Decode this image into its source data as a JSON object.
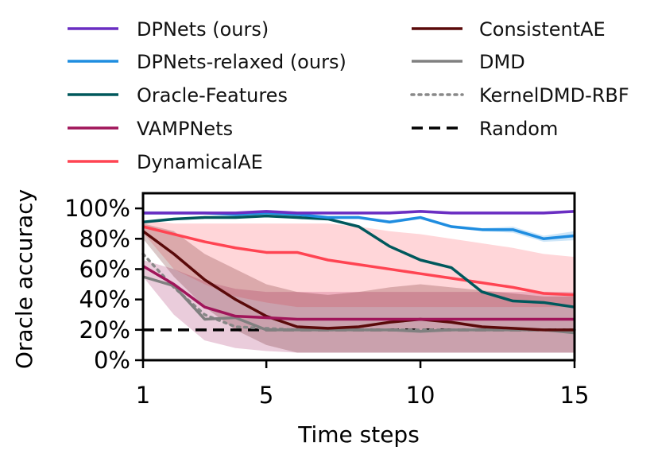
{
  "chart_data": {
    "type": "line",
    "title": "",
    "xlabel": "Time steps",
    "ylabel": "Oracle accuracy",
    "xlim": [
      1,
      15
    ],
    "ylim": [
      0,
      110
    ],
    "xticks": [
      1,
      5,
      10,
      15
    ],
    "xtick_labels": [
      "1",
      "5",
      "10",
      "15"
    ],
    "yticks": [
      0,
      20,
      40,
      60,
      80,
      100
    ],
    "ytick_labels": [
      "0%",
      "20%",
      "40%",
      "60%",
      "80%",
      "100%"
    ],
    "grid": false,
    "legend_placement": "top, two columns, outside plot",
    "x": [
      1,
      2,
      3,
      4,
      5,
      6,
      7,
      8,
      9,
      10,
      11,
      12,
      13,
      14,
      15
    ],
    "series": [
      {
        "name": "DPNets (ours)",
        "color": "#6a2ec2",
        "style": "solid",
        "values": [
          97,
          97,
          97,
          97,
          98,
          97,
          97,
          97,
          97,
          98,
          97,
          97,
          97,
          97,
          98
        ],
        "band_low": [
          96,
          96,
          96,
          96,
          97,
          96,
          96,
          96,
          96,
          97,
          96,
          96,
          96,
          96,
          97
        ],
        "band_high": [
          98,
          98,
          98,
          98,
          99,
          98,
          98,
          98,
          98,
          99,
          98,
          98,
          98,
          98,
          99
        ]
      },
      {
        "name": "DPNets-relaxed (ours)",
        "color": "#1f8de0",
        "style": "solid",
        "values": [
          97,
          97,
          97,
          96,
          97,
          96,
          94,
          94,
          91,
          94,
          88,
          86,
          86,
          80,
          82
        ],
        "band_low": [
          96,
          96,
          96,
          95,
          96,
          95,
          93,
          93,
          90,
          93,
          87,
          85,
          84,
          78,
          79
        ],
        "band_high": [
          98,
          98,
          98,
          97,
          98,
          97,
          95,
          95,
          92,
          95,
          89,
          87,
          88,
          82,
          85
        ]
      },
      {
        "name": "Oracle-Features",
        "color": "#00585c",
        "style": "solid",
        "values": [
          91,
          93,
          94,
          94,
          95,
          94,
          93,
          88,
          75,
          66,
          61,
          45,
          39,
          38,
          35
        ]
      },
      {
        "name": "VAMPNets",
        "color": "#a0155a",
        "style": "solid",
        "values": [
          62,
          50,
          35,
          29,
          28,
          27,
          27,
          27,
          27,
          27,
          27,
          27,
          27,
          27,
          27
        ],
        "band_low": [
          55,
          30,
          13,
          8,
          6,
          5,
          5,
          5,
          5,
          5,
          5,
          5,
          5,
          5,
          5
        ],
        "band_high": [
          66,
          60,
          52,
          47,
          45,
          45,
          45,
          45,
          45,
          45,
          45,
          45,
          45,
          45,
          45
        ]
      },
      {
        "name": "DynamicalAE",
        "color": "#ff4452",
        "style": "solid",
        "values": [
          88,
          83,
          78,
          74,
          71,
          71,
          66,
          63,
          60,
          57,
          54,
          51,
          48,
          44,
          43
        ],
        "band_low": [
          84,
          60,
          50,
          42,
          38,
          35,
          35,
          35,
          35,
          35,
          35,
          35,
          35,
          35,
          35
        ],
        "band_high": [
          92,
          90,
          90,
          90,
          90,
          90,
          90,
          88,
          85,
          83,
          80,
          77,
          74,
          70,
          68
        ]
      },
      {
        "name": "ConsistentAE",
        "color": "#5a0a0a",
        "style": "solid",
        "values": [
          85,
          70,
          53,
          40,
          29,
          22,
          21,
          22,
          25,
          27,
          25,
          22,
          21,
          20,
          20
        ],
        "band_low": [
          80,
          55,
          35,
          20,
          10,
          5,
          5,
          5,
          5,
          5,
          5,
          5,
          5,
          5,
          5
        ],
        "band_high": [
          90,
          85,
          70,
          60,
          50,
          45,
          43,
          45,
          48,
          50,
          48,
          46,
          44,
          42,
          42
        ]
      },
      {
        "name": "DMD",
        "color": "#808080",
        "style": "solid",
        "values": [
          55,
          49,
          27,
          28,
          20,
          20,
          20,
          20,
          20,
          19,
          20,
          20,
          20,
          20,
          18
        ]
      },
      {
        "name": "KernelDMD-RBF",
        "color": "#888888",
        "style": "dotted",
        "values": [
          70,
          48,
          30,
          22,
          21,
          20,
          20,
          20,
          20,
          20,
          20,
          20,
          20,
          20,
          20
        ]
      },
      {
        "name": "Random",
        "color": "#000000",
        "style": "dashed",
        "values": [
          20,
          20,
          20,
          20,
          20,
          20,
          20,
          20,
          20,
          20,
          20,
          20,
          20,
          20,
          20
        ]
      }
    ]
  }
}
